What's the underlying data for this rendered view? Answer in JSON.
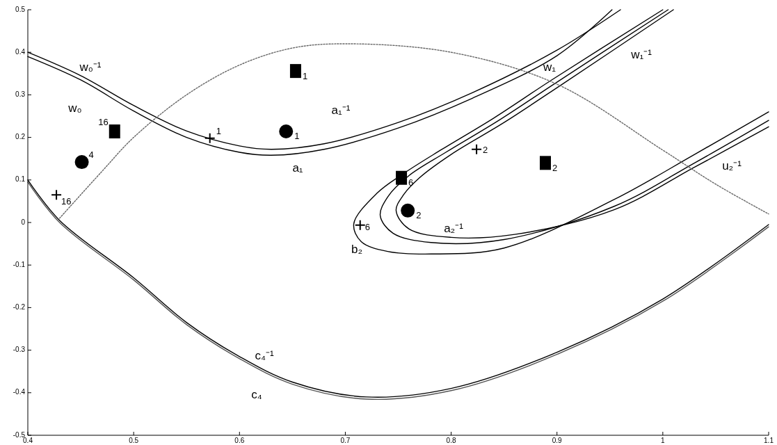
{
  "chart_data": {
    "type": "line",
    "xlim": [
      0.4,
      1.1
    ],
    "ylim": [
      -0.5,
      0.5
    ],
    "xticks": [
      0.4,
      0.5,
      0.6,
      0.7,
      0.8,
      0.9,
      1,
      1.1
    ],
    "yticks": [
      -0.5,
      -0.4,
      -0.3,
      -0.2,
      -0.1,
      0,
      0.1,
      0.2,
      0.3,
      0.4,
      0.5
    ],
    "series": [
      {
        "color": "#000000",
        "x": [
          0.4,
          0.45,
          0.5,
          0.55,
          0.6,
          0.63,
          0.68,
          0.75,
          0.82,
          0.9,
          0.96
        ],
        "values": [
          0.4,
          0.345,
          0.275,
          0.215,
          0.18,
          0.172,
          0.185,
          0.235,
          0.305,
          0.405,
          0.5
        ]
      },
      {
        "color": "#000000",
        "x": [
          0.4,
          0.45,
          0.5,
          0.55,
          0.6,
          0.63,
          0.68,
          0.75,
          0.82,
          0.9,
          0.952
        ],
        "values": [
          0.39,
          0.335,
          0.262,
          0.2,
          0.165,
          0.158,
          0.172,
          0.222,
          0.292,
          0.392,
          0.5
        ]
      },
      {
        "color": "#000000",
        "x": [
          1.0,
          0.895,
          0.84,
          0.79,
          0.755,
          0.73,
          0.708,
          0.715,
          0.74,
          0.781,
          0.85,
          0.954,
          1.03,
          1.1
        ],
        "values": [
          0.5,
          0.335,
          0.245,
          0.17,
          0.115,
          0.069,
          -0.003,
          -0.045,
          -0.068,
          -0.074,
          -0.06,
          0.054,
          0.16,
          0.26
        ]
      },
      {
        "color": "#000000",
        "x": [
          1.005,
          0.9,
          0.845,
          0.795,
          0.76,
          0.74,
          0.733,
          0.745,
          0.781,
          0.85,
          0.954,
          1.03,
          1.1
        ],
        "values": [
          0.5,
          0.33,
          0.24,
          0.165,
          0.11,
          0.06,
          0.016,
          -0.025,
          -0.047,
          -0.04,
          0.038,
          0.14,
          0.24
        ]
      },
      {
        "color": "#000000",
        "x": [
          1.01,
          0.905,
          0.85,
          0.8,
          0.77,
          0.755,
          0.748,
          0.76,
          0.8,
          0.86,
          0.954,
          1.03,
          1.1
        ],
        "values": [
          0.5,
          0.325,
          0.235,
          0.16,
          0.105,
          0.065,
          0.028,
          -0.015,
          -0.035,
          -0.028,
          0.03,
          0.13,
          0.225
        ]
      },
      {
        "color": "#000000",
        "x": [
          0.4,
          0.43,
          0.5,
          0.55,
          0.6,
          0.65,
          0.72,
          0.8,
          0.9,
          1.0,
          1.1
        ],
        "values": [
          0.1,
          0.005,
          -0.13,
          -0.235,
          -0.315,
          -0.375,
          -0.41,
          -0.39,
          -0.305,
          -0.18,
          -0.005
        ]
      },
      {
        "color": "#555555",
        "x": [
          0.4,
          0.43,
          0.5,
          0.55,
          0.6,
          0.65,
          0.72,
          0.8,
          0.9,
          1.0,
          1.1
        ],
        "values": [
          0.095,
          0.0,
          -0.135,
          -0.24,
          -0.32,
          -0.38,
          -0.415,
          -0.395,
          -0.31,
          -0.185,
          -0.01
        ]
      },
      {
        "color": "#666666",
        "line_style": "dotted",
        "x": [
          0.43,
          0.47,
          0.5,
          0.55,
          0.6,
          0.65,
          0.7,
          0.8,
          0.9,
          1.0,
          1.05,
          1.1
        ],
        "values": [
          0.01,
          0.12,
          0.2,
          0.3,
          0.37,
          0.41,
          0.42,
          0.4,
          0.325,
          0.17,
          0.09,
          0.02
        ]
      },
      {
        "type": "scatter",
        "marker": "square",
        "color": "#000000",
        "x": [
          0.653,
          0.482,
          0.753,
          0.889
        ],
        "values": [
          0.356,
          0.214,
          0.105,
          0.14
        ]
      },
      {
        "type": "scatter",
        "marker": "circle",
        "color": "#000000",
        "x": [
          0.644,
          0.451,
          0.759
        ],
        "values": [
          0.214,
          0.142,
          0.028
        ]
      },
      {
        "type": "scatter",
        "marker": "cross",
        "color": "#000000",
        "x": [
          0.572,
          0.427,
          0.824,
          0.714
        ],
        "values": [
          0.198,
          0.065,
          0.172,
          -0.006
        ]
      }
    ],
    "annotations": [
      "w₀⁻¹",
      "w₀",
      "a₁⁻¹",
      "a₁",
      "w₁",
      "w₁⁻¹",
      "u₂⁻¹",
      "a₂⁻¹",
      "b₂",
      "c₄⁻¹",
      "c₄",
      {
        "text": "1",
        "x": 0.653,
        "y": 0.356
      },
      {
        "text": "16",
        "x": 0.482,
        "y": 0.214
      },
      {
        "text": "6",
        "x": 0.753,
        "y": 0.105
      },
      {
        "text": "2",
        "x": 0.889,
        "y": 0.14
      },
      {
        "text": "1",
        "x": 0.644,
        "y": 0.214
      },
      {
        "text": "4",
        "x": 0.451,
        "y": 0.142
      },
      {
        "text": "2",
        "x": 0.759,
        "y": 0.028
      },
      {
        "text": "1",
        "x": 0.572,
        "y": 0.198
      },
      {
        "text": "16",
        "x": 0.427,
        "y": 0.065
      },
      {
        "text": "2",
        "x": 0.824,
        "y": 0.172
      },
      {
        "text": "6",
        "x": 0.714,
        "y": -0.006
      }
    ]
  }
}
